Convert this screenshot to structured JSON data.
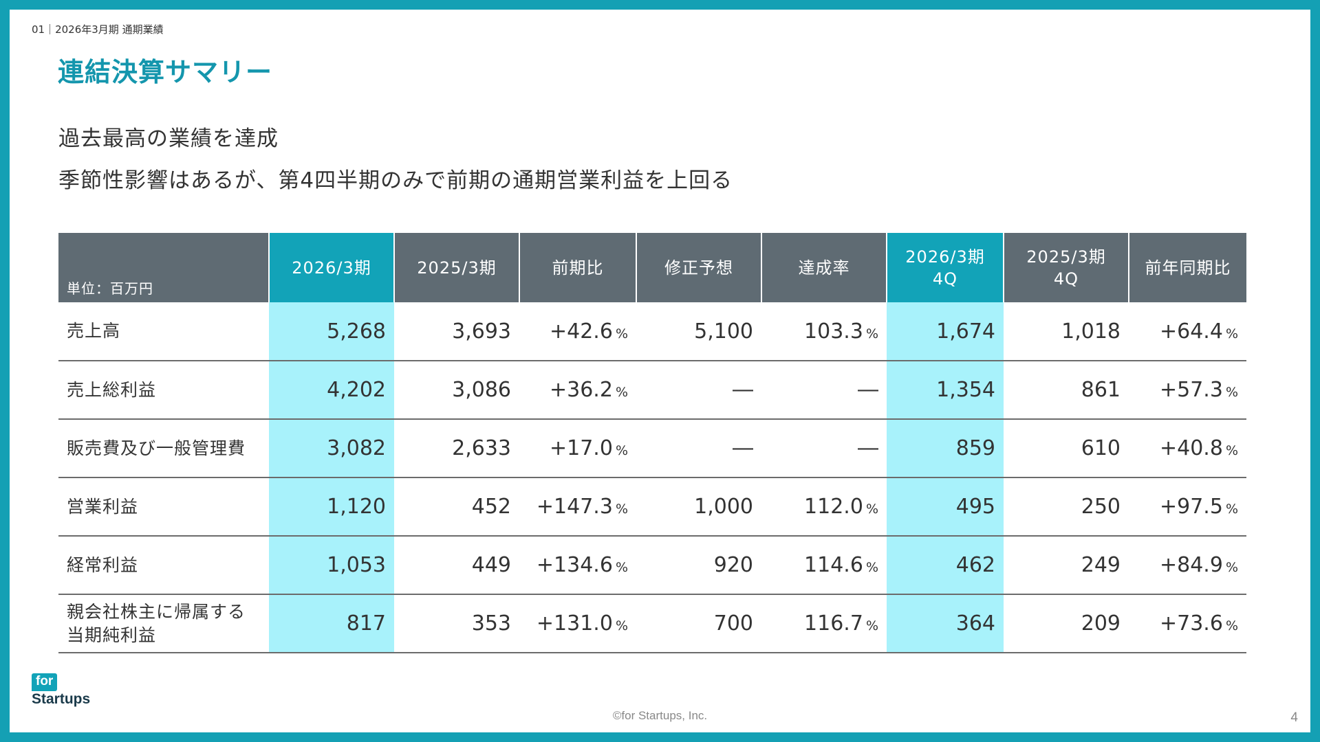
{
  "header": {
    "section_label": "01｜2026年3月期 通期業績",
    "title": "連結決算サマリー"
  },
  "lead": {
    "line1": "過去最高の業績を達成",
    "line2": "季節性影響はあるが、第4四半期のみで前期の通期営業利益を上回る"
  },
  "table": {
    "unit_label": "単位：百万円",
    "columns": [
      {
        "label": "2026/3期",
        "highlight": true
      },
      {
        "label": "2025/3期",
        "highlight": false
      },
      {
        "label": "前期比",
        "highlight": false
      },
      {
        "label": "修正予想",
        "highlight": false
      },
      {
        "label": "達成率",
        "highlight": false
      },
      {
        "label": "2026/3期\n4Q",
        "highlight": true
      },
      {
        "label": "2025/3期\n4Q",
        "highlight": false
      },
      {
        "label": "前年同期比",
        "highlight": false
      }
    ],
    "percent_symbol": "%",
    "rows": [
      {
        "label": "売上高",
        "cells": [
          "5,268",
          "3,693",
          "+42.6",
          "5,100",
          "103.3",
          "1,674",
          "1,018",
          "+64.4"
        ]
      },
      {
        "label": "売上総利益",
        "cells": [
          "4,202",
          "3,086",
          "+36.2",
          "―",
          "―",
          "1,354",
          "861",
          "+57.3"
        ]
      },
      {
        "label": "販売費及び一般管理費",
        "cells": [
          "3,082",
          "2,633",
          "+17.0",
          "―",
          "―",
          "859",
          "610",
          "+40.8"
        ]
      },
      {
        "label": "営業利益",
        "cells": [
          "1,120",
          "452",
          "+147.3",
          "1,000",
          "112.0",
          "495",
          "250",
          "+97.5"
        ]
      },
      {
        "label": "経常利益",
        "cells": [
          "1,053",
          "449",
          "+134.6",
          "920",
          "114.6",
          "462",
          "249",
          "+84.9"
        ]
      },
      {
        "label": "親会社株主に帰属する\n当期純利益",
        "cells": [
          "817",
          "353",
          "+131.0",
          "700",
          "116.7",
          "364",
          "209",
          "+73.6"
        ]
      }
    ]
  },
  "footer": {
    "logo_badge": "for",
    "logo_text": "Startups",
    "copyright": "©for Startups, Inc.",
    "page_number": "4"
  },
  "colors": {
    "frame": "#14a0b4",
    "title": "#1496ad",
    "header_bg": "#5f6b73",
    "header_highlight": "#12a3b8",
    "cell_highlight": "#a8f2fb"
  }
}
